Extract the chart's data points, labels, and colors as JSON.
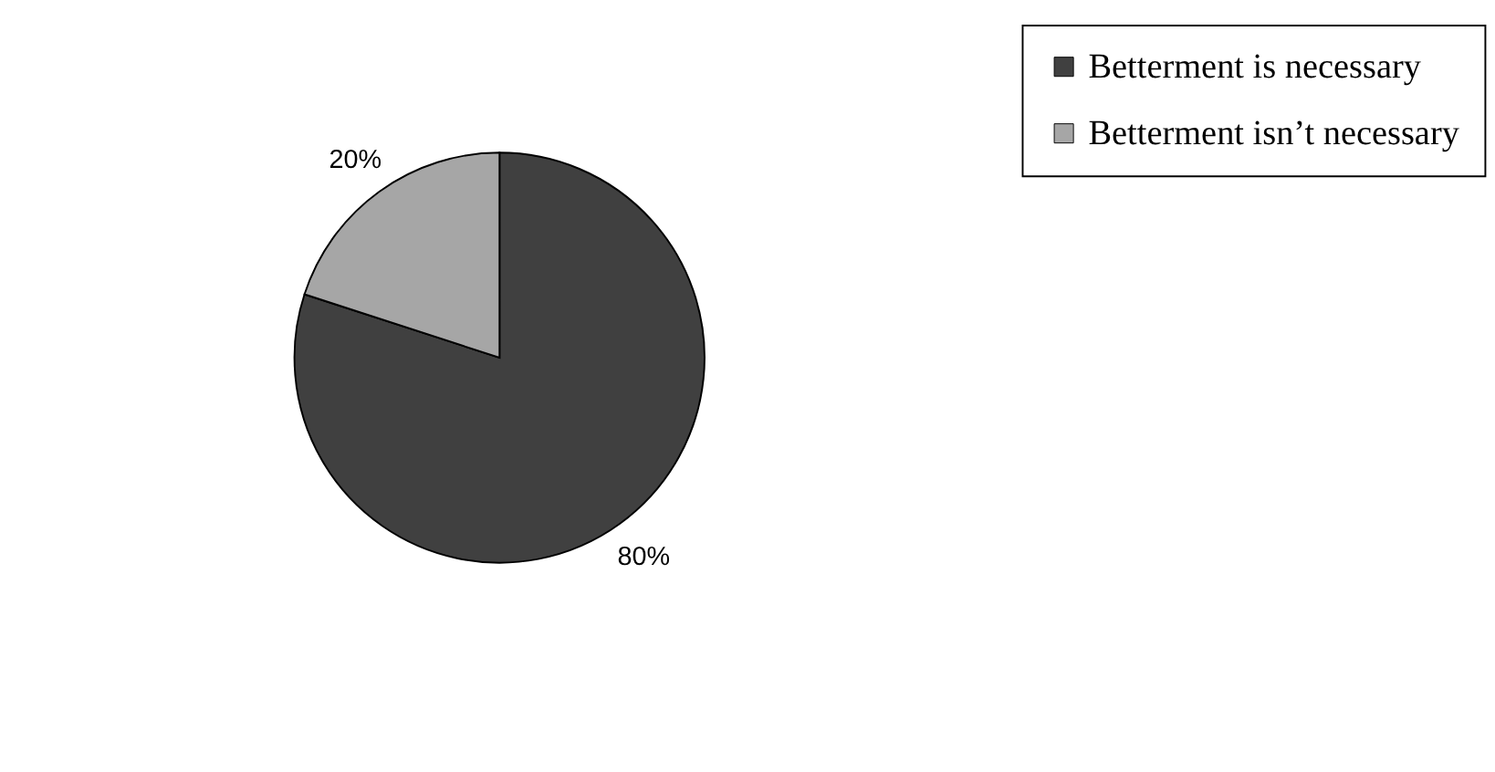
{
  "chart_data": {
    "type": "pie",
    "categories": [
      "Betterment is necessary",
      "Betterment isn’t necessary"
    ],
    "values": [
      80,
      20
    ],
    "colors": [
      "#404040",
      "#a6a6a6"
    ],
    "value_labels": [
      "80%",
      "20%"
    ],
    "legend": "right"
  }
}
